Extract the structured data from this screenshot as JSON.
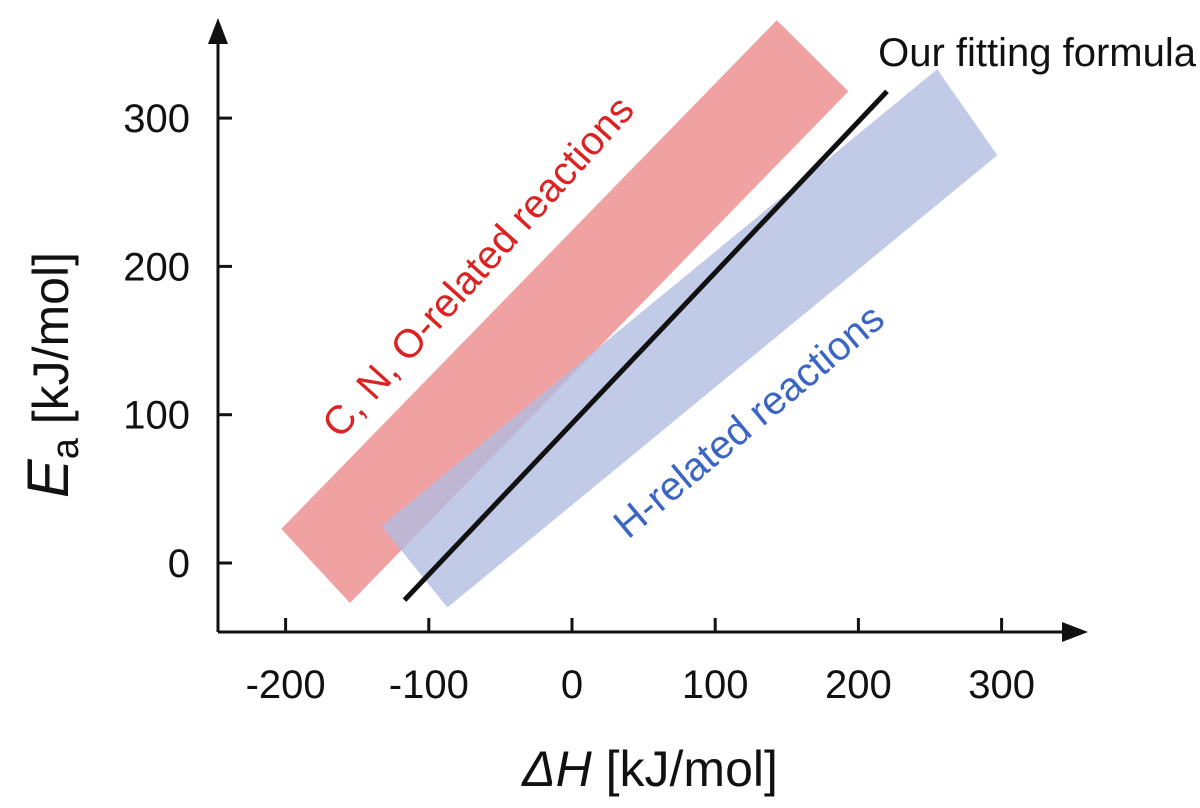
{
  "chart_data": {
    "type": "line",
    "title": "",
    "xlabel": "ΔH [kJ/mol]",
    "xlabel_symbol": "ΔH",
    "xlabel_unit": " [kJ/mol]",
    "ylabel": "Ea [kJ/mol]",
    "ylabel_symbol": "E",
    "ylabel_subscript": "a",
    "ylabel_unit": " [kJ/mol]",
    "xlim": [
      -250,
      350
    ],
    "ylim": [
      -45,
      360
    ],
    "x_ticks": [
      -200,
      -100,
      0,
      100,
      200,
      300
    ],
    "x_tick_labels": [
      "-200",
      "-100",
      "0",
      "100",
      "200",
      "300"
    ],
    "y_ticks": [
      0,
      100,
      200,
      300
    ],
    "y_tick_labels": [
      "0",
      "100",
      "200",
      "300"
    ],
    "grid": false,
    "bands": [
      {
        "name": "C, N, O-related reactions",
        "color": "#ee9494",
        "text_color": "#dd2222",
        "corners": [
          [
            -203,
            23
          ],
          [
            -155,
            -27
          ],
          [
            193,
            318
          ],
          [
            143,
            366
          ]
        ]
      },
      {
        "name": "H-related reactions",
        "color": "#b0bde2",
        "text_color": "#3b65c4",
        "corners": [
          [
            -133,
            25
          ],
          [
            -87,
            -30
          ],
          [
            297,
            275
          ],
          [
            255,
            333
          ]
        ]
      }
    ],
    "series": [
      {
        "name": "Our fitting formula",
        "color": "#111111",
        "x": [
          -117,
          220
        ],
        "y": [
          -25,
          318
        ]
      }
    ]
  }
}
